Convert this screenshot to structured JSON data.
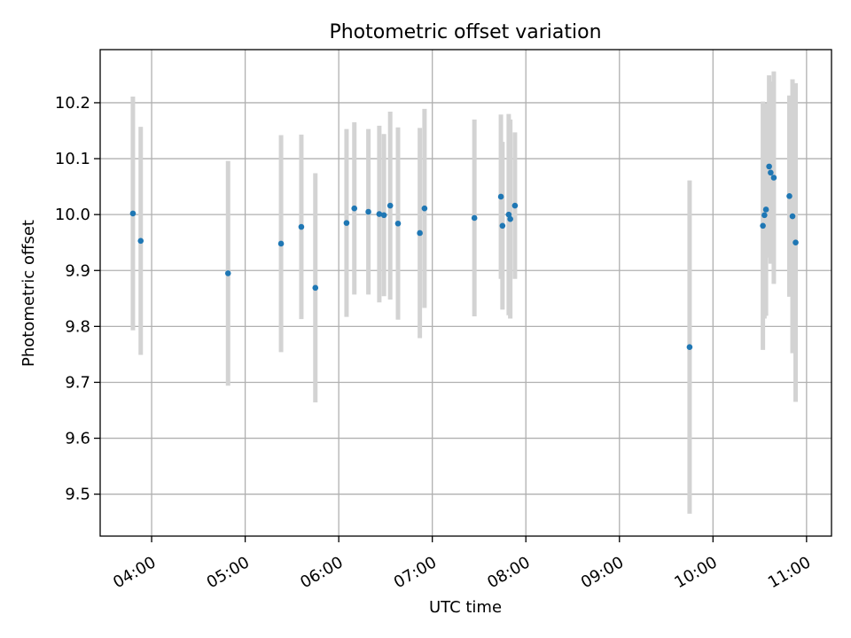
{
  "chart_data": {
    "type": "scatter",
    "title": "Photometric offset variation",
    "xlabel": "UTC time",
    "ylabel": "Photometric offset",
    "grid": true,
    "x_ticks": [
      "04:00",
      "05:00",
      "06:00",
      "07:00",
      "08:00",
      "09:00",
      "10:00",
      "11:00"
    ],
    "y_ticks": [
      "9.5",
      "9.6",
      "9.7",
      "9.8",
      "9.9",
      "10.0",
      "10.1",
      "10.2"
    ],
    "xlim": [
      "03:27",
      "11:16"
    ],
    "ylim": [
      9.425,
      10.295
    ],
    "colors": {
      "point": "#1f77b4",
      "errorbar": "#d3d3d3",
      "grid": "#b0b0b0"
    },
    "points": [
      {
        "x": "03:48",
        "y": 10.002,
        "err": 0.209
      },
      {
        "x": "03:53",
        "y": 9.953,
        "err": 0.204
      },
      {
        "x": "04:49",
        "y": 9.895,
        "err": 0.201
      },
      {
        "x": "05:23",
        "y": 9.948,
        "err": 0.194
      },
      {
        "x": "05:36",
        "y": 9.978,
        "err": 0.165
      },
      {
        "x": "05:45",
        "y": 9.869,
        "err": 0.205
      },
      {
        "x": "06:05",
        "y": 9.985,
        "err": 0.168
      },
      {
        "x": "06:10",
        "y": 10.011,
        "err": 0.154
      },
      {
        "x": "06:19",
        "y": 10.005,
        "err": 0.148
      },
      {
        "x": "06:26",
        "y": 10.001,
        "err": 0.158
      },
      {
        "x": "06:29",
        "y": 9.999,
        "err": 0.145
      },
      {
        "x": "06:33",
        "y": 10.016,
        "err": 0.168
      },
      {
        "x": "06:38",
        "y": 9.984,
        "err": 0.172
      },
      {
        "x": "06:52",
        "y": 9.967,
        "err": 0.188
      },
      {
        "x": "06:55",
        "y": 10.011,
        "err": 0.178
      },
      {
        "x": "07:27",
        "y": 9.994,
        "err": 0.176
      },
      {
        "x": "07:44",
        "y": 10.032,
        "err": 0.147
      },
      {
        "x": "07:45",
        "y": 9.98,
        "err": 0.15
      },
      {
        "x": "07:49",
        "y": 10.0,
        "err": 0.18
      },
      {
        "x": "07:50",
        "y": 9.992,
        "err": 0.178
      },
      {
        "x": "07:53",
        "y": 10.016,
        "err": 0.131
      },
      {
        "x": "09:45",
        "y": 9.763,
        "err": 0.298
      },
      {
        "x": "10:32",
        "y": 9.98,
        "err": 0.222
      },
      {
        "x": "10:33",
        "y": 9.999,
        "err": 0.185
      },
      {
        "x": "10:34",
        "y": 10.009,
        "err": 0.19
      },
      {
        "x": "10:36",
        "y": 10.086,
        "err": 0.163
      },
      {
        "x": "10:37",
        "y": 10.075,
        "err": 0.163
      },
      {
        "x": "10:39",
        "y": 10.066,
        "err": 0.19
      },
      {
        "x": "10:49",
        "y": 10.033,
        "err": 0.18
      },
      {
        "x": "10:51",
        "y": 9.997,
        "err": 0.245
      },
      {
        "x": "10:53",
        "y": 9.95,
        "err": 0.285
      }
    ]
  }
}
